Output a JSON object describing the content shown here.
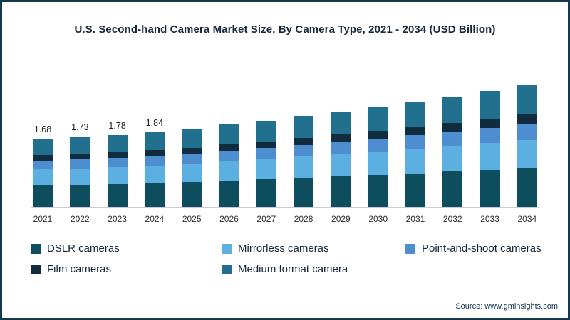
{
  "title": "U.S. Second-hand Camera Market Size, By Camera Type, 2021 - 2034 (USD Billion)",
  "source": "Source: www.gminsights.com",
  "frame_border_color": "#15384a",
  "chart_data": {
    "type": "bar",
    "stacked": true,
    "title": "U.S. Second-hand Camera Market Size, By Camera Type, 2021 - 2034 (USD Billion)",
    "xlabel": "",
    "ylabel": "USD Billion",
    "ylim": [
      0,
      3.2
    ],
    "grid": false,
    "legend_position": "bottom",
    "categories": [
      "2021",
      "2022",
      "2023",
      "2024",
      "2025",
      "2026",
      "2027",
      "2028",
      "2029",
      "2030",
      "2031",
      "2032",
      "2033",
      "2034"
    ],
    "series": [
      {
        "name": "DSLR cameras",
        "color": "#0d4d5e",
        "values": [
          0.54,
          0.55,
          0.57,
          0.59,
          0.62,
          0.65,
          0.68,
          0.72,
          0.75,
          0.79,
          0.83,
          0.87,
          0.92,
          0.96
        ]
      },
      {
        "name": "Mirrorless cameras",
        "color": "#5bb0e1",
        "values": [
          0.39,
          0.4,
          0.41,
          0.42,
          0.44,
          0.47,
          0.49,
          0.52,
          0.54,
          0.57,
          0.6,
          0.63,
          0.66,
          0.69
        ]
      },
      {
        "name": "Point-and-shoot cameras",
        "color": "#4e8ed0",
        "values": [
          0.22,
          0.22,
          0.23,
          0.24,
          0.25,
          0.26,
          0.28,
          0.29,
          0.31,
          0.32,
          0.34,
          0.35,
          0.37,
          0.39
        ]
      },
      {
        "name": "Film cameras",
        "color": "#102c3e",
        "values": [
          0.13,
          0.14,
          0.14,
          0.15,
          0.15,
          0.16,
          0.17,
          0.18,
          0.19,
          0.2,
          0.21,
          0.22,
          0.23,
          0.24
        ]
      },
      {
        "name": "Medium format camera",
        "color": "#20708e",
        "values": [
          0.4,
          0.42,
          0.43,
          0.44,
          0.46,
          0.49,
          0.51,
          0.54,
          0.56,
          0.59,
          0.62,
          0.65,
          0.69,
          0.72
        ]
      }
    ],
    "totals": [
      1.68,
      1.73,
      1.78,
      1.84,
      1.92,
      2.03,
      2.13,
      2.25,
      2.35,
      2.47,
      2.6,
      2.72,
      2.87,
      3.0
    ],
    "value_labels": [
      "1.68",
      "1.73",
      "1.78",
      "1.84",
      "",
      "",
      "",
      "",
      "",
      "",
      "",
      "",
      "",
      ""
    ]
  }
}
